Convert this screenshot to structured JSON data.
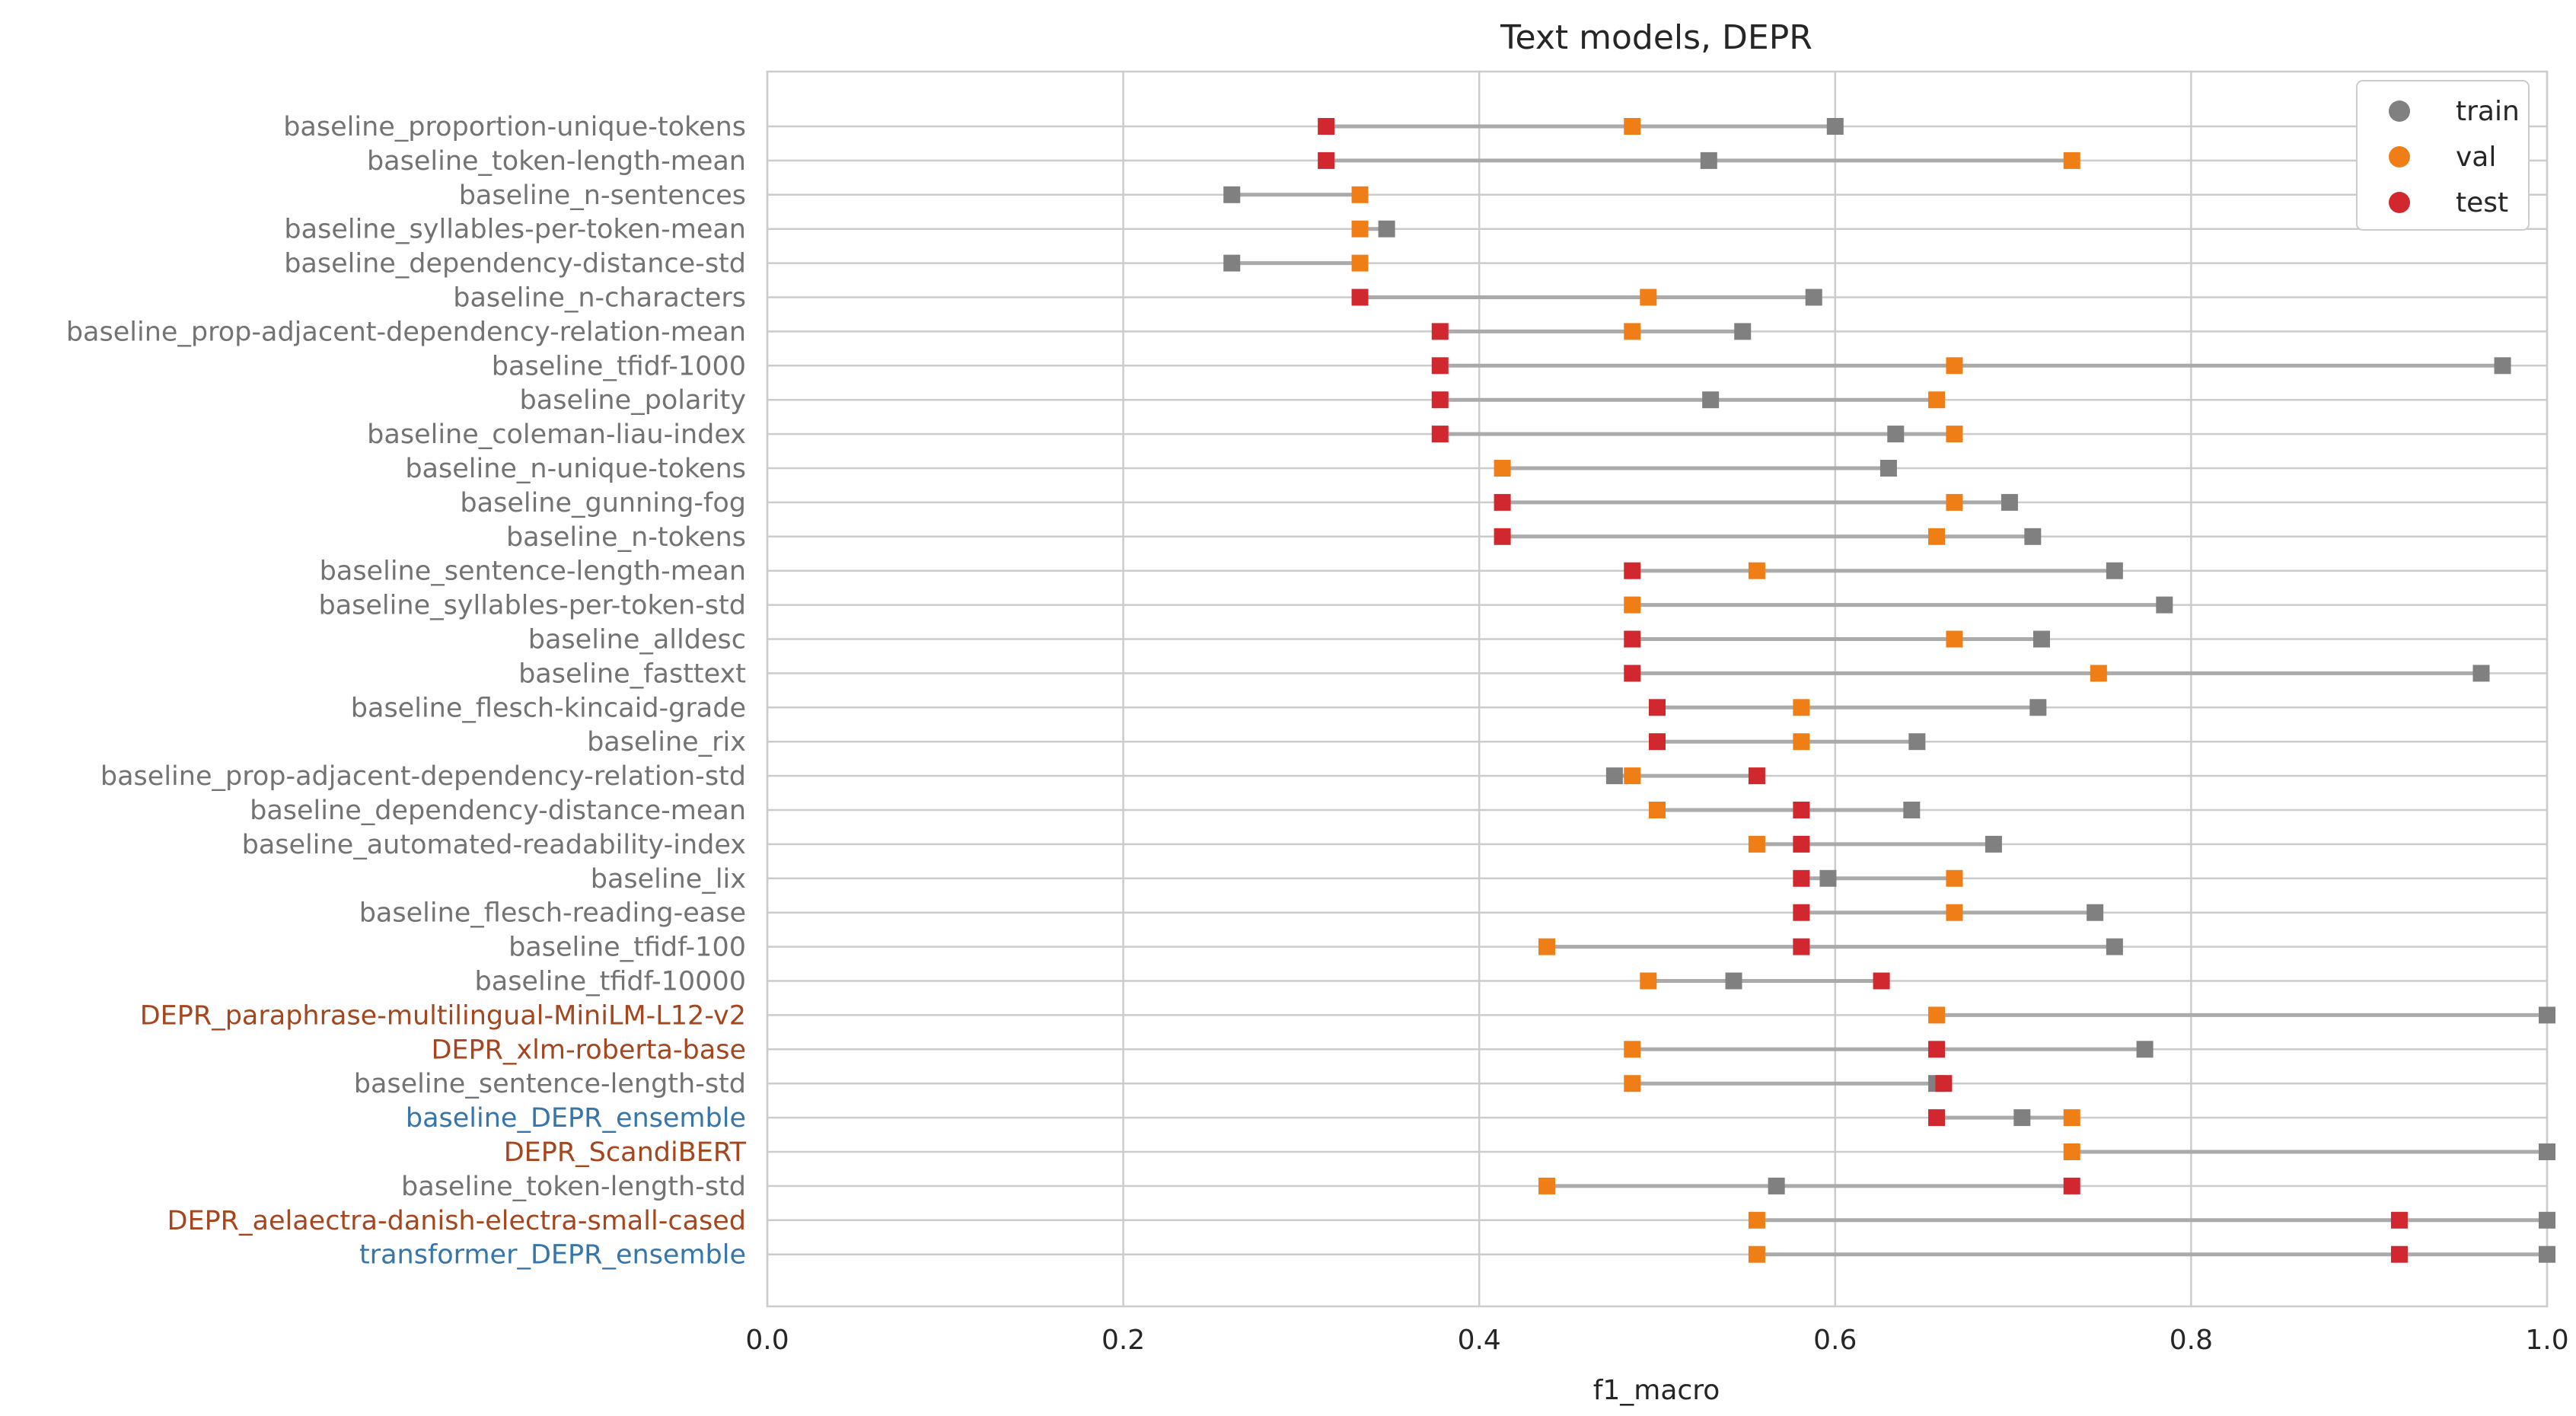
{
  "chart_data": {
    "type": "scatter",
    "title": "Text models, DEPR",
    "xlabel": "f1_macro",
    "ylabel": "",
    "xlim": [
      0.0,
      1.0
    ],
    "xticks": [
      "0.0",
      "0.2",
      "0.4",
      "0.6",
      "0.8",
      "1.0"
    ],
    "grid": true,
    "legend_position": "top-right",
    "legend": [
      "train",
      "val",
      "test"
    ],
    "series_colors": {
      "train": "#808080",
      "val": "#f07e16",
      "test": "#d0282e"
    },
    "label_colors": {
      "baseline": "#737373",
      "DEPR": "#a5461e",
      "ensemble": "#3776ab"
    },
    "line_color": "#aaaaaa",
    "categories": [
      {
        "label": "baseline_proportion-unique-tokens",
        "kind": "baseline",
        "train": 0.6,
        "val": 0.486,
        "test": 0.314
      },
      {
        "label": "baseline_token-length-mean",
        "kind": "baseline",
        "train": 0.529,
        "val": 0.733,
        "test": 0.314
      },
      {
        "label": "baseline_n-sentences",
        "kind": "baseline",
        "train": 0.261,
        "val": 0.333,
        "test": null
      },
      {
        "label": "baseline_syllables-per-token-mean",
        "kind": "baseline",
        "train": 0.348,
        "val": 0.333,
        "test": null
      },
      {
        "label": "baseline_dependency-distance-std",
        "kind": "baseline",
        "train": 0.261,
        "val": 0.333,
        "test": null
      },
      {
        "label": "baseline_n-characters",
        "kind": "baseline",
        "train": 0.588,
        "val": 0.495,
        "test": 0.333
      },
      {
        "label": "baseline_prop-adjacent-dependency-relation-mean",
        "kind": "baseline",
        "train": 0.548,
        "val": 0.486,
        "test": 0.378
      },
      {
        "label": "baseline_tfidf-1000",
        "kind": "baseline",
        "train": 0.975,
        "val": 0.667,
        "test": 0.378
      },
      {
        "label": "baseline_polarity",
        "kind": "baseline",
        "train": 0.53,
        "val": 0.657,
        "test": 0.378
      },
      {
        "label": "baseline_coleman-liau-index",
        "kind": "baseline",
        "train": 0.634,
        "val": 0.667,
        "test": 0.378
      },
      {
        "label": "baseline_n-unique-tokens",
        "kind": "baseline",
        "train": 0.63,
        "val": 0.413,
        "test": null
      },
      {
        "label": "baseline_gunning-fog",
        "kind": "baseline",
        "train": 0.698,
        "val": 0.667,
        "test": 0.413
      },
      {
        "label": "baseline_n-tokens",
        "kind": "baseline",
        "train": 0.711,
        "val": 0.657,
        "test": 0.413
      },
      {
        "label": "baseline_sentence-length-mean",
        "kind": "baseline",
        "train": 0.757,
        "val": 0.556,
        "test": 0.486
      },
      {
        "label": "baseline_syllables-per-token-std",
        "kind": "baseline",
        "train": 0.785,
        "val": 0.486,
        "test": null
      },
      {
        "label": "baseline_alldesc",
        "kind": "baseline",
        "train": 0.716,
        "val": 0.667,
        "test": 0.486
      },
      {
        "label": "baseline_fasttext",
        "kind": "baseline",
        "train": 0.963,
        "val": 0.748,
        "test": 0.486
      },
      {
        "label": "baseline_flesch-kincaid-grade",
        "kind": "baseline",
        "train": 0.714,
        "val": 0.581,
        "test": 0.5
      },
      {
        "label": "baseline_rix",
        "kind": "baseline",
        "train": 0.646,
        "val": 0.581,
        "test": 0.5
      },
      {
        "label": "baseline_prop-adjacent-dependency-relation-std",
        "kind": "baseline",
        "train": 0.476,
        "val": 0.486,
        "test": 0.556
      },
      {
        "label": "baseline_dependency-distance-mean",
        "kind": "baseline",
        "train": 0.643,
        "val": 0.5,
        "test": 0.581
      },
      {
        "label": "baseline_automated-readability-index",
        "kind": "baseline",
        "train": 0.689,
        "val": 0.556,
        "test": 0.581
      },
      {
        "label": "baseline_lix",
        "kind": "baseline",
        "train": 0.596,
        "val": 0.667,
        "test": 0.581
      },
      {
        "label": "baseline_flesch-reading-ease",
        "kind": "baseline",
        "train": 0.746,
        "val": 0.667,
        "test": 0.581
      },
      {
        "label": "baseline_tfidf-100",
        "kind": "baseline",
        "train": 0.757,
        "val": 0.438,
        "test": 0.581
      },
      {
        "label": "baseline_tfidf-10000",
        "kind": "baseline",
        "train": 0.543,
        "val": 0.495,
        "test": 0.626
      },
      {
        "label": "DEPR_paraphrase-multilingual-MiniLM-L12-v2",
        "kind": "DEPR",
        "train": 1.0,
        "val": 0.657,
        "test": null
      },
      {
        "label": "DEPR_xlm-roberta-base",
        "kind": "DEPR",
        "train": 0.774,
        "val": 0.486,
        "test": 0.657
      },
      {
        "label": "baseline_sentence-length-std",
        "kind": "baseline",
        "train": 0.657,
        "val": 0.486,
        "test": 0.661
      },
      {
        "label": "baseline_DEPR_ensemble",
        "kind": "ensemble",
        "train": 0.705,
        "val": 0.733,
        "test": 0.657
      },
      {
        "label": "DEPR_ScandiBERT",
        "kind": "DEPR",
        "train": 1.0,
        "val": 0.733,
        "test": null
      },
      {
        "label": "baseline_token-length-std",
        "kind": "baseline",
        "train": 0.567,
        "val": 0.438,
        "test": 0.733
      },
      {
        "label": "DEPR_aelaectra-danish-electra-small-cased",
        "kind": "DEPR",
        "train": 1.0,
        "val": 0.556,
        "test": 0.917
      },
      {
        "label": "transformer_DEPR_ensemble",
        "kind": "ensemble",
        "train": 1.0,
        "val": 0.556,
        "test": 0.917
      }
    ]
  }
}
